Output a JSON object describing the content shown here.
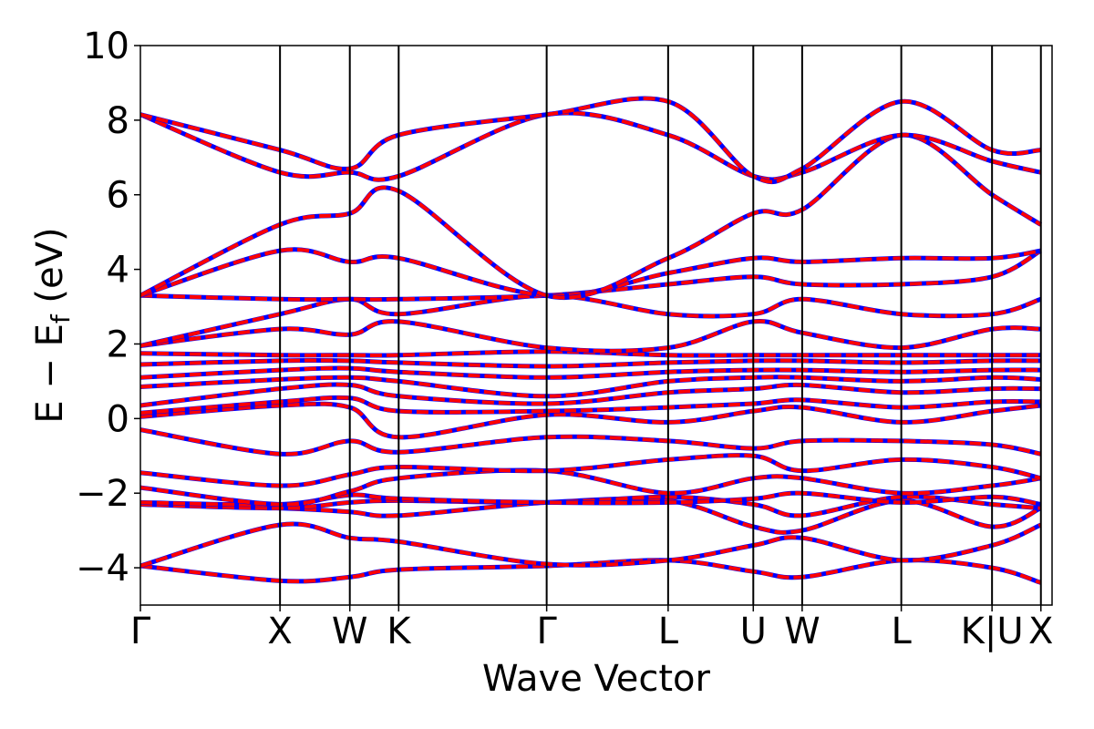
{
  "chart_data": {
    "type": "line",
    "xlabel": "Wave Vector",
    "ylabel_parts": {
      "main": "E − E",
      "sub": "f",
      "unit": " (eV)"
    },
    "ylim": [
      -5,
      10
    ],
    "yticks": [
      10,
      8,
      6,
      4,
      2,
      0,
      -2,
      -4
    ],
    "ytick_labels": [
      "10",
      "8",
      "6",
      "4",
      "2",
      "0",
      "−2",
      "−4"
    ],
    "xlim": [
      0,
      6.53
    ],
    "high_symmetry_points": [
      {
        "label": "Γ",
        "x": 0.0
      },
      {
        "label": "X",
        "x": 1.0
      },
      {
        "label": "W",
        "x": 1.5
      },
      {
        "label": "K",
        "x": 1.85
      },
      {
        "label": "Γ",
        "x": 2.91
      },
      {
        "label": "L",
        "x": 3.78
      },
      {
        "label": "U",
        "x": 4.39
      },
      {
        "label": "W",
        "x": 4.74
      },
      {
        "label": "L",
        "x": 5.45
      },
      {
        "label": "K|U",
        "x": 6.1
      },
      {
        "label": "X",
        "x": 6.45
      }
    ],
    "grid": false,
    "series_styles": [
      {
        "color": "#0000ff",
        "style": "solid",
        "width": 5
      },
      {
        "color": "#ff0000",
        "style": "dashed",
        "width": 4
      }
    ],
    "bands": [
      {
        "nodes": [
          [
            0,
            -3.95
          ],
          [
            1,
            -4.35
          ],
          [
            1.5,
            -4.25
          ],
          [
            1.85,
            -4.05
          ],
          [
            2.91,
            -3.95
          ],
          [
            3.78,
            -3.8
          ],
          [
            4.39,
            -4.1
          ],
          [
            4.74,
            -4.25
          ],
          [
            5.45,
            -3.8
          ],
          [
            6.1,
            -4.0
          ],
          [
            6.45,
            -4.4
          ]
        ]
      },
      {
        "nodes": [
          [
            0,
            -3.95
          ],
          [
            1,
            -2.85
          ],
          [
            1.5,
            -3.2
          ],
          [
            1.85,
            -3.3
          ],
          [
            2.91,
            -3.9
          ],
          [
            3.78,
            -3.8
          ],
          [
            4.39,
            -3.4
          ],
          [
            4.74,
            -3.2
          ],
          [
            5.45,
            -3.8
          ],
          [
            6.1,
            -3.4
          ],
          [
            6.45,
            -2.85
          ]
        ]
      },
      {
        "nodes": [
          [
            0,
            -2.3
          ],
          [
            1,
            -2.4
          ],
          [
            1.5,
            -2.5
          ],
          [
            1.85,
            -2.6
          ],
          [
            2.91,
            -2.25
          ],
          [
            3.78,
            -2.2
          ],
          [
            4.39,
            -2.9
          ],
          [
            4.74,
            -3.0
          ],
          [
            5.45,
            -2.2
          ],
          [
            6.1,
            -2.9
          ],
          [
            6.45,
            -2.4
          ]
        ]
      },
      {
        "nodes": [
          [
            0,
            -2.3
          ],
          [
            1,
            -2.4
          ],
          [
            1.5,
            -2.25
          ],
          [
            1.85,
            -2.2
          ],
          [
            2.91,
            -2.25
          ],
          [
            3.78,
            -2.1
          ],
          [
            4.39,
            -2.3
          ],
          [
            4.74,
            -2.6
          ],
          [
            5.45,
            -2.1
          ],
          [
            6.1,
            -2.3
          ],
          [
            6.45,
            -2.4
          ]
        ]
      },
      {
        "nodes": [
          [
            0,
            -2.25
          ],
          [
            1,
            -2.3
          ],
          [
            1.5,
            -2.05
          ],
          [
            1.85,
            -2.15
          ],
          [
            2.91,
            -2.25
          ],
          [
            3.78,
            -2.25
          ],
          [
            4.39,
            -2.15
          ],
          [
            4.74,
            -2.0
          ],
          [
            5.45,
            -2.25
          ],
          [
            6.1,
            -2.1
          ],
          [
            6.45,
            -2.3
          ]
        ]
      },
      {
        "nodes": [
          [
            0,
            -1.85
          ],
          [
            1,
            -2.3
          ],
          [
            1.5,
            -1.95
          ],
          [
            1.85,
            -1.6
          ],
          [
            2.91,
            -1.4
          ],
          [
            3.78,
            -2.0
          ],
          [
            4.39,
            -1.6
          ],
          [
            4.74,
            -1.6
          ],
          [
            5.45,
            -2.0
          ],
          [
            6.1,
            -1.8
          ],
          [
            6.45,
            -1.6
          ]
        ]
      },
      {
        "nodes": [
          [
            0,
            -1.45
          ],
          [
            1,
            -1.8
          ],
          [
            1.5,
            -1.5
          ],
          [
            1.85,
            -1.3
          ],
          [
            2.91,
            -1.4
          ],
          [
            3.78,
            -1.1
          ],
          [
            4.39,
            -1.0
          ],
          [
            4.74,
            -1.4
          ],
          [
            5.45,
            -1.1
          ],
          [
            6.1,
            -1.3
          ],
          [
            6.45,
            -1.6
          ]
        ]
      },
      {
        "nodes": [
          [
            0,
            -0.3
          ],
          [
            1,
            -0.95
          ],
          [
            1.5,
            -0.6
          ],
          [
            1.85,
            -0.9
          ],
          [
            2.91,
            -0.5
          ],
          [
            3.78,
            -0.6
          ],
          [
            4.39,
            -0.8
          ],
          [
            4.74,
            -0.6
          ],
          [
            5.45,
            -0.6
          ],
          [
            6.1,
            -0.7
          ],
          [
            6.45,
            -0.95
          ]
        ]
      },
      {
        "nodes": [
          [
            0,
            0.05
          ],
          [
            1,
            0.35
          ],
          [
            1.5,
            0.3
          ],
          [
            1.85,
            -0.5
          ],
          [
            2.91,
            0.1
          ],
          [
            3.78,
            -0.1
          ],
          [
            4.39,
            0.2
          ],
          [
            4.74,
            0.3
          ],
          [
            5.45,
            -0.1
          ],
          [
            6.1,
            0.2
          ],
          [
            6.45,
            0.35
          ]
        ]
      },
      {
        "nodes": [
          [
            0,
            0.15
          ],
          [
            1,
            0.45
          ],
          [
            1.5,
            0.55
          ],
          [
            1.85,
            0.2
          ],
          [
            2.91,
            0.2
          ],
          [
            3.78,
            0.3
          ],
          [
            4.39,
            0.4
          ],
          [
            4.74,
            0.5
          ],
          [
            5.45,
            0.3
          ],
          [
            6.1,
            0.45
          ],
          [
            6.45,
            0.45
          ]
        ]
      },
      {
        "nodes": [
          [
            0,
            0.35
          ],
          [
            1,
            0.8
          ],
          [
            1.5,
            0.9
          ],
          [
            1.85,
            0.6
          ],
          [
            2.91,
            0.4
          ],
          [
            3.78,
            0.7
          ],
          [
            4.39,
            0.8
          ],
          [
            4.74,
            0.9
          ],
          [
            5.45,
            0.7
          ],
          [
            6.1,
            0.8
          ],
          [
            6.45,
            0.8
          ]
        ]
      },
      {
        "nodes": [
          [
            0,
            0.85
          ],
          [
            1,
            1.05
          ],
          [
            1.5,
            1.1
          ],
          [
            1.85,
            1.0
          ],
          [
            2.91,
            0.6
          ],
          [
            3.78,
            1.0
          ],
          [
            4.39,
            1.1
          ],
          [
            4.74,
            1.1
          ],
          [
            5.45,
            1.0
          ],
          [
            6.1,
            1.1
          ],
          [
            6.45,
            1.05
          ]
        ]
      },
      {
        "nodes": [
          [
            0,
            1.1
          ],
          [
            1,
            1.3
          ],
          [
            1.5,
            1.35
          ],
          [
            1.85,
            1.25
          ],
          [
            2.91,
            1.1
          ],
          [
            3.78,
            1.25
          ],
          [
            4.39,
            1.3
          ],
          [
            4.74,
            1.3
          ],
          [
            5.45,
            1.25
          ],
          [
            6.1,
            1.3
          ],
          [
            6.45,
            1.3
          ]
        ]
      },
      {
        "nodes": [
          [
            0,
            1.45
          ],
          [
            1,
            1.55
          ],
          [
            1.5,
            1.55
          ],
          [
            1.85,
            1.5
          ],
          [
            2.91,
            1.4
          ],
          [
            3.78,
            1.5
          ],
          [
            4.39,
            1.55
          ],
          [
            4.74,
            1.55
          ],
          [
            5.45,
            1.5
          ],
          [
            6.1,
            1.55
          ],
          [
            6.45,
            1.55
          ]
        ]
      },
      {
        "nodes": [
          [
            0,
            1.75
          ],
          [
            1,
            1.7
          ],
          [
            1.5,
            1.7
          ],
          [
            1.85,
            1.7
          ],
          [
            2.91,
            1.8
          ],
          [
            3.78,
            1.7
          ],
          [
            4.39,
            1.7
          ],
          [
            4.74,
            1.7
          ],
          [
            5.45,
            1.7
          ],
          [
            6.1,
            1.7
          ],
          [
            6.45,
            1.7
          ]
        ]
      },
      {
        "nodes": [
          [
            0,
            1.95
          ],
          [
            1,
            2.4
          ],
          [
            1.5,
            2.25
          ],
          [
            1.85,
            2.6
          ],
          [
            2.91,
            1.9
          ],
          [
            3.78,
            1.9
          ],
          [
            4.39,
            2.6
          ],
          [
            4.74,
            2.3
          ],
          [
            5.45,
            1.9
          ],
          [
            6.1,
            2.4
          ],
          [
            6.45,
            2.4
          ]
        ]
      },
      {
        "nodes": [
          [
            0,
            1.95
          ],
          [
            1,
            2.8
          ],
          [
            1.5,
            3.2
          ],
          [
            1.85,
            2.8
          ],
          [
            2.91,
            3.3
          ],
          [
            3.78,
            2.8
          ],
          [
            4.39,
            2.8
          ],
          [
            4.74,
            3.2
          ],
          [
            5.45,
            2.8
          ],
          [
            6.1,
            2.8
          ],
          [
            6.45,
            3.2
          ]
        ]
      },
      {
        "nodes": [
          [
            0,
            3.3
          ],
          [
            1,
            3.2
          ],
          [
            1.5,
            3.2
          ],
          [
            1.85,
            3.2
          ],
          [
            2.91,
            3.3
          ],
          [
            3.78,
            3.6
          ],
          [
            4.39,
            3.8
          ],
          [
            4.74,
            3.6
          ],
          [
            5.45,
            3.6
          ],
          [
            6.1,
            3.8
          ],
          [
            6.45,
            4.5
          ]
        ]
      },
      {
        "nodes": [
          [
            0,
            3.3
          ],
          [
            1,
            4.5
          ],
          [
            1.5,
            4.2
          ],
          [
            1.85,
            4.3
          ],
          [
            2.91,
            3.3
          ],
          [
            3.78,
            3.9
          ],
          [
            4.39,
            4.3
          ],
          [
            4.74,
            4.2
          ],
          [
            5.45,
            4.3
          ],
          [
            6.1,
            4.3
          ],
          [
            6.45,
            4.5
          ]
        ]
      },
      {
        "nodes": [
          [
            0,
            3.3
          ],
          [
            1,
            5.2
          ],
          [
            1.5,
            5.5
          ],
          [
            1.85,
            6.1
          ],
          [
            2.91,
            3.3
          ],
          [
            3.78,
            4.3
          ],
          [
            4.39,
            5.5
          ],
          [
            4.74,
            5.6
          ],
          [
            5.45,
            7.6
          ],
          [
            6.1,
            6.0
          ],
          [
            6.45,
            5.2
          ]
        ]
      },
      {
        "nodes": [
          [
            0,
            8.15
          ],
          [
            1,
            6.6
          ],
          [
            1.5,
            6.6
          ],
          [
            1.85,
            6.5
          ],
          [
            2.91,
            8.15
          ],
          [
            3.78,
            7.6
          ],
          [
            4.39,
            6.5
          ],
          [
            4.74,
            6.6
          ],
          [
            5.45,
            7.6
          ],
          [
            6.1,
            6.9
          ],
          [
            6.45,
            6.6
          ]
        ]
      },
      {
        "nodes": [
          [
            0,
            8.15
          ],
          [
            1,
            7.2
          ],
          [
            1.5,
            6.7
          ],
          [
            1.85,
            7.6
          ],
          [
            2.91,
            8.15
          ],
          [
            3.78,
            8.5
          ],
          [
            4.39,
            6.5
          ],
          [
            4.74,
            6.7
          ],
          [
            5.45,
            8.5
          ],
          [
            6.1,
            7.2
          ],
          [
            6.45,
            7.2
          ]
        ]
      }
    ]
  }
}
